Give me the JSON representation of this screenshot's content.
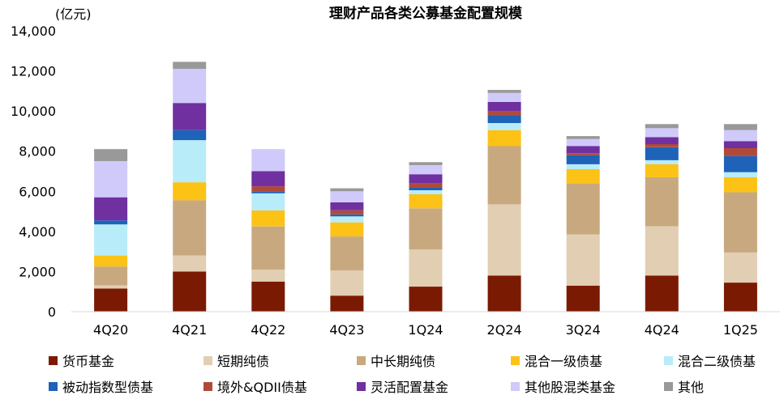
{
  "chart_data": {
    "type": "bar",
    "stacked": true,
    "title": "理财产品各类公募基金配置规模",
    "ylabel": "(亿元)",
    "ylim": [
      0,
      14000
    ],
    "yticks": [
      0,
      2000,
      4000,
      6000,
      8000,
      10000,
      12000,
      14000
    ],
    "ytick_labels": [
      "0",
      "2,000",
      "4,000",
      "6,000",
      "8,000",
      "10,000",
      "12,000",
      "14,000"
    ],
    "categories": [
      "4Q20",
      "4Q21",
      "4Q22",
      "4Q23",
      "1Q24",
      "2Q24",
      "3Q24",
      "4Q24",
      "1Q25"
    ],
    "legend_position": "bottom",
    "grid": false,
    "series": [
      {
        "name": "货币基金",
        "color": "#7b1a02",
        "values": [
          1150,
          2000,
          1500,
          800,
          1250,
          1800,
          1300,
          1800,
          1450
        ]
      },
      {
        "name": "短期纯债",
        "color": "#e2ceb2",
        "values": [
          150,
          800,
          600,
          1250,
          1850,
          3550,
          2550,
          2450,
          1500
        ]
      },
      {
        "name": "中长期纯债",
        "color": "#c8a97f",
        "values": [
          950,
          2750,
          2150,
          1700,
          2050,
          2900,
          2550,
          2450,
          3000
        ]
      },
      {
        "name": "混合一级债基",
        "color": "#fcc216",
        "values": [
          550,
          900,
          800,
          700,
          700,
          800,
          700,
          650,
          750
        ]
      },
      {
        "name": "混合二级债基",
        "color": "#b9ecf9",
        "values": [
          1550,
          2100,
          850,
          300,
          200,
          350,
          250,
          200,
          250
        ]
      },
      {
        "name": "被动指数型债基",
        "color": "#1e63b8",
        "values": [
          200,
          500,
          100,
          100,
          150,
          400,
          450,
          650,
          800
        ]
      },
      {
        "name": "境外&QDII债基",
        "color": "#b04a38",
        "values": [
          0,
          0,
          250,
          200,
          200,
          200,
          100,
          150,
          400
        ]
      },
      {
        "name": "灵活配置基金",
        "color": "#7030a0",
        "values": [
          1150,
          1350,
          750,
          400,
          450,
          450,
          350,
          350,
          350
        ]
      },
      {
        "name": "其他股混类基金",
        "color": "#cfcafa",
        "values": [
          1800,
          1700,
          1100,
          550,
          450,
          450,
          350,
          450,
          550
        ]
      },
      {
        "name": "其他",
        "color": "#999999",
        "values": [
          600,
          350,
          0,
          150,
          150,
          150,
          150,
          200,
          300
        ]
      }
    ]
  }
}
